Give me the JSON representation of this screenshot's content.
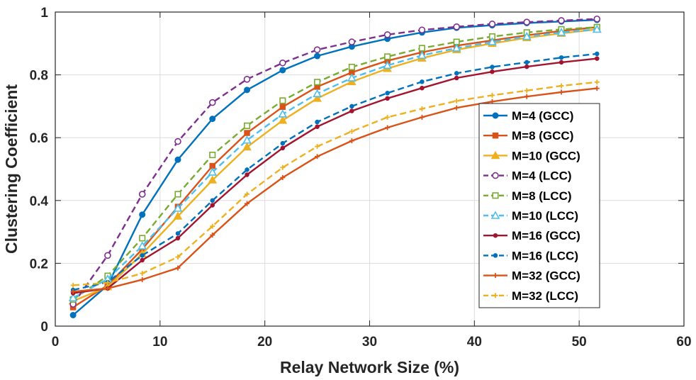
{
  "chart_data": {
    "type": "line",
    "title": "",
    "xlabel": "Relay Network Size (%)",
    "ylabel": "Clustering Coefficient",
    "xlim": [
      0,
      60
    ],
    "ylim": [
      0,
      1
    ],
    "xticks": [
      0,
      10,
      20,
      30,
      40,
      50,
      60
    ],
    "yticks": [
      0,
      0.2,
      0.4,
      0.6,
      0.8,
      1
    ],
    "ytick_labels": [
      "0",
      "0.2",
      "0.4",
      "0.6",
      "0.8",
      "1"
    ],
    "grid": true,
    "legend_position": "center-right",
    "x": [
      1.7,
      5.0,
      8.3,
      11.7,
      15.0,
      18.3,
      21.7,
      25.0,
      28.3,
      31.7,
      35.0,
      38.3,
      41.7,
      45.0,
      48.3,
      51.7
    ],
    "series": [
      {
        "name": "M=4 (GCC)",
        "color": "#0072BD",
        "dash": "solid",
        "marker": "circle-filled",
        "values": [
          0.035,
          0.13,
          0.355,
          0.53,
          0.66,
          0.752,
          0.815,
          0.86,
          0.89,
          0.915,
          0.935,
          0.95,
          0.958,
          0.965,
          0.97,
          0.975
        ]
      },
      {
        "name": "M=8 (GCC)",
        "color": "#D95319",
        "dash": "solid",
        "marker": "square-filled",
        "values": [
          0.06,
          0.13,
          0.245,
          0.38,
          0.51,
          0.615,
          0.698,
          0.762,
          0.808,
          0.845,
          0.872,
          0.893,
          0.91,
          0.926,
          0.94,
          0.952
        ]
      },
      {
        "name": "M=10 (GCC)",
        "color": "#EDB120",
        "dash": "solid",
        "marker": "triangle-filled",
        "values": [
          0.08,
          0.125,
          0.23,
          0.35,
          0.465,
          0.57,
          0.655,
          0.725,
          0.778,
          0.82,
          0.853,
          0.88,
          0.9,
          0.918,
          0.932,
          0.945
        ]
      },
      {
        "name": "M=4 (LCC)",
        "color": "#7E2F8E",
        "dash": "dashed",
        "marker": "circle-open",
        "values": [
          0.07,
          0.225,
          0.42,
          0.588,
          0.712,
          0.786,
          0.838,
          0.88,
          0.905,
          0.928,
          0.943,
          0.953,
          0.962,
          0.968,
          0.973,
          0.978
        ]
      },
      {
        "name": "M=8 (LCC)",
        "color": "#77AC30",
        "dash": "dashed",
        "marker": "square-open",
        "values": [
          0.085,
          0.16,
          0.28,
          0.42,
          0.545,
          0.638,
          0.718,
          0.777,
          0.825,
          0.858,
          0.885,
          0.905,
          0.922,
          0.935,
          0.945,
          0.952
        ]
      },
      {
        "name": "M=10 (LCC)",
        "color": "#4DBEEE",
        "dash": "dashed",
        "marker": "triangle-open",
        "values": [
          0.09,
          0.15,
          0.255,
          0.375,
          0.49,
          0.592,
          0.675,
          0.74,
          0.79,
          0.83,
          0.862,
          0.885,
          0.905,
          0.922,
          0.935,
          0.945
        ]
      },
      {
        "name": "M=16 (GCC)",
        "color": "#A2142F",
        "dash": "solid",
        "marker": "dot",
        "values": [
          0.105,
          0.12,
          0.21,
          0.28,
          0.385,
          0.482,
          0.567,
          0.635,
          0.685,
          0.725,
          0.758,
          0.79,
          0.81,
          0.826,
          0.84,
          0.852
        ]
      },
      {
        "name": "M=16 (LCC)",
        "color": "#0072BD",
        "dash": "dashed",
        "marker": "dot",
        "values": [
          0.115,
          0.14,
          0.225,
          0.295,
          0.4,
          0.498,
          0.582,
          0.65,
          0.7,
          0.742,
          0.778,
          0.805,
          0.825,
          0.84,
          0.855,
          0.867
        ]
      },
      {
        "name": "M=32 (GCC)",
        "color": "#D95319",
        "dash": "solid",
        "marker": "plus",
        "values": [
          0.11,
          0.12,
          0.148,
          0.185,
          0.29,
          0.39,
          0.473,
          0.54,
          0.59,
          0.632,
          0.665,
          0.695,
          0.715,
          0.731,
          0.745,
          0.757
        ]
      },
      {
        "name": "M=32 (LCC)",
        "color": "#EDB120",
        "dash": "dashed",
        "marker": "plus",
        "values": [
          0.13,
          0.138,
          0.168,
          0.22,
          0.318,
          0.42,
          0.505,
          0.572,
          0.62,
          0.665,
          0.692,
          0.717,
          0.735,
          0.75,
          0.765,
          0.777
        ]
      }
    ]
  }
}
